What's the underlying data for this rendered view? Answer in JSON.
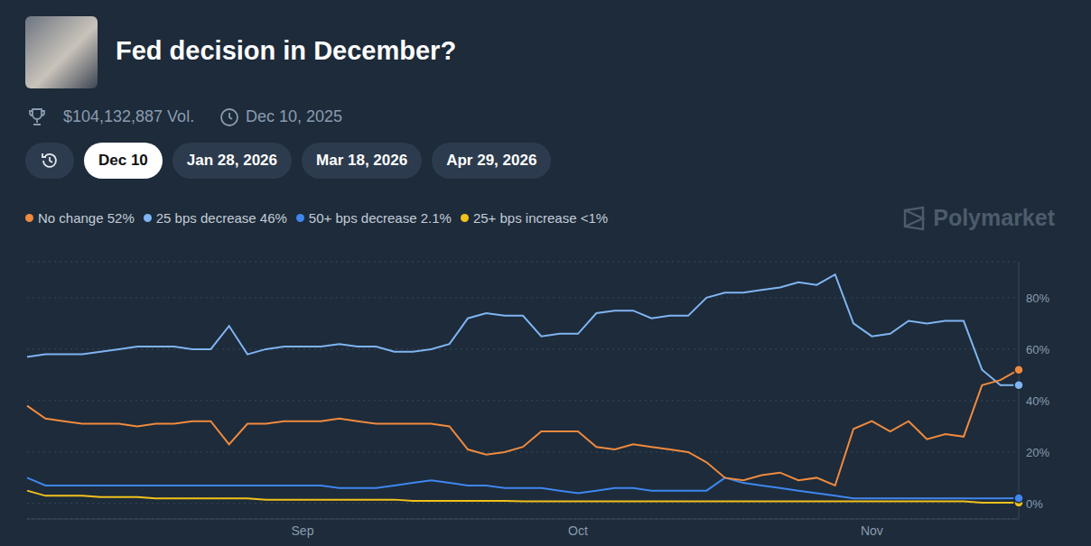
{
  "header": {
    "volume": "$104,132,887 Vol.",
    "date": "Dec 10, 2025",
    "tabs": [
      "Dec 10",
      "Jan 28, 2026",
      "Mar 18, 2026",
      "Apr 29, 2026"
    ],
    "active_tab": "Dec 10",
    "watermark": "Polymarket"
  },
  "chart_data": {
    "type": "line",
    "title": "Fed decision in December?",
    "categories": [
      null,
      null,
      null,
      null,
      null,
      null,
      null,
      null,
      null,
      null,
      null,
      null,
      null,
      null,
      null,
      "Sep",
      null,
      null,
      null,
      null,
      null,
      null,
      null,
      null,
      null,
      null,
      null,
      null,
      null,
      null,
      "Oct",
      null,
      null,
      null,
      null,
      null,
      null,
      null,
      null,
      null,
      null,
      null,
      null,
      null,
      null,
      null,
      "Nov",
      null,
      null,
      null,
      null,
      null,
      null,
      null,
      null
    ],
    "series": [
      {
        "name": "No change",
        "value_label": "52%",
        "color": "#f08a3e",
        "values": [
          38,
          33,
          32,
          31,
          31,
          31,
          30,
          31,
          31,
          32,
          32,
          23,
          31,
          31,
          32,
          32,
          32,
          33,
          32,
          31,
          31,
          31,
          31,
          30,
          21,
          19,
          20,
          22,
          28,
          28,
          28,
          22,
          21,
          23,
          22,
          21,
          20,
          16,
          10,
          9,
          11,
          12,
          9,
          10,
          7,
          29,
          32,
          28,
          32,
          25,
          27,
          26,
          46,
          48,
          52
        ]
      },
      {
        "name": "25 bps decrease",
        "value_label": "46%",
        "color": "#80b4f2",
        "values": [
          57,
          58,
          58,
          58,
          59,
          60,
          61,
          61,
          61,
          60,
          60,
          69,
          58,
          60,
          61,
          61,
          61,
          62,
          61,
          61,
          59,
          59,
          60,
          62,
          72,
          74,
          73,
          73,
          65,
          66,
          66,
          74,
          75,
          75,
          72,
          73,
          73,
          80,
          82,
          82,
          83,
          84,
          86,
          85,
          89,
          70,
          65,
          66,
          71,
          70,
          71,
          71,
          52,
          46,
          46
        ]
      },
      {
        "name": "50+ bps decrease",
        "value_label": "2.1%",
        "color": "#3f86ee",
        "values": [
          10,
          7,
          7,
          7,
          7,
          7,
          7,
          7,
          7,
          7,
          7,
          7,
          7,
          7,
          7,
          7,
          7,
          6,
          6,
          6,
          7,
          8,
          9,
          8,
          7,
          7,
          6,
          6,
          6,
          5,
          4,
          5,
          6,
          6,
          5,
          5,
          5,
          5,
          10,
          8,
          7,
          6,
          5,
          4,
          3,
          2,
          2,
          2,
          2,
          2,
          2,
          2,
          2,
          2,
          2.1
        ]
      },
      {
        "name": "25+ bps increase",
        "value_label": "<1%",
        "color": "#f2c21b",
        "values": [
          5,
          3,
          3,
          3,
          2.5,
          2.5,
          2.5,
          2,
          2,
          2,
          2,
          2,
          2,
          1.5,
          1.5,
          1.5,
          1.5,
          1.5,
          1.5,
          1.5,
          1.5,
          1,
          1,
          1,
          1,
          1,
          1,
          0.8,
          0.8,
          0.8,
          0.8,
          0.8,
          0.8,
          0.8,
          0.8,
          0.8,
          0.8,
          0.8,
          0.8,
          0.8,
          0.8,
          0.8,
          0.8,
          0.8,
          0.8,
          0.8,
          0.8,
          0.8,
          0.8,
          0.8,
          0.8,
          0.8,
          0.3,
          0.3,
          0.3
        ]
      }
    ],
    "ylim": [
      -6,
      94
    ],
    "yticks": [
      {
        "value": 0,
        "label": "0%"
      },
      {
        "value": 20,
        "label": "20%"
      },
      {
        "value": 40,
        "label": "40%"
      },
      {
        "value": 60,
        "label": "60%"
      },
      {
        "value": 80,
        "label": "80%"
      }
    ],
    "grid": true,
    "legend": "top-left"
  }
}
